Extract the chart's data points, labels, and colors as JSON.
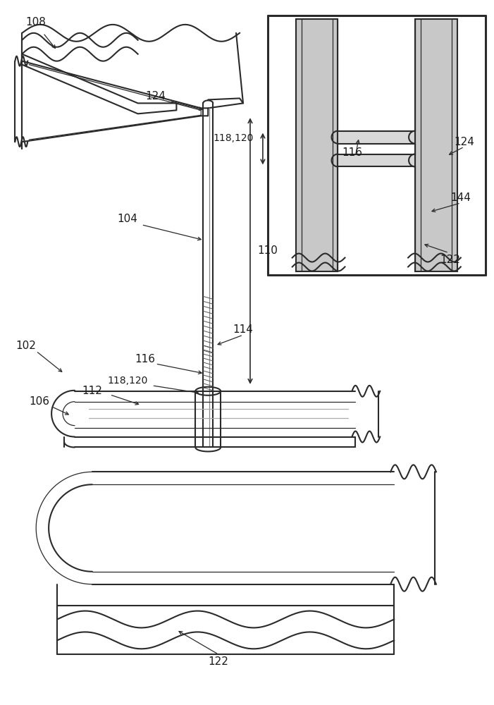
{
  "bg_color": "#ffffff",
  "line_color": "#2a2a2a",
  "label_color": "#1a1a1a",
  "fig_width": 7.01,
  "fig_height": 10.0,
  "dpi": 100
}
